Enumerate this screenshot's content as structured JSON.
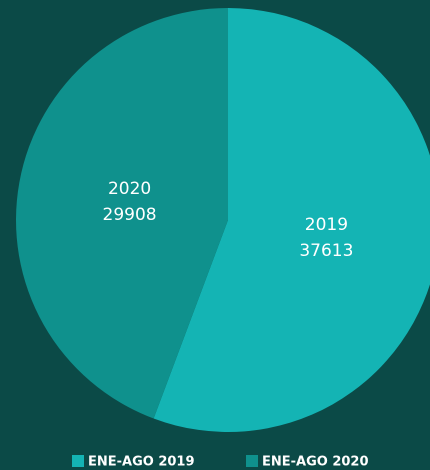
{
  "chart_data": {
    "type": "pie",
    "categories": [
      "2019",
      "2020"
    ],
    "values": [
      37613,
      29908
    ],
    "legend": [
      "ENE-AGO 2019",
      "ENE-AGO 2020"
    ],
    "colors": [
      "#14b4b4",
      "#0f918d"
    ]
  }
}
